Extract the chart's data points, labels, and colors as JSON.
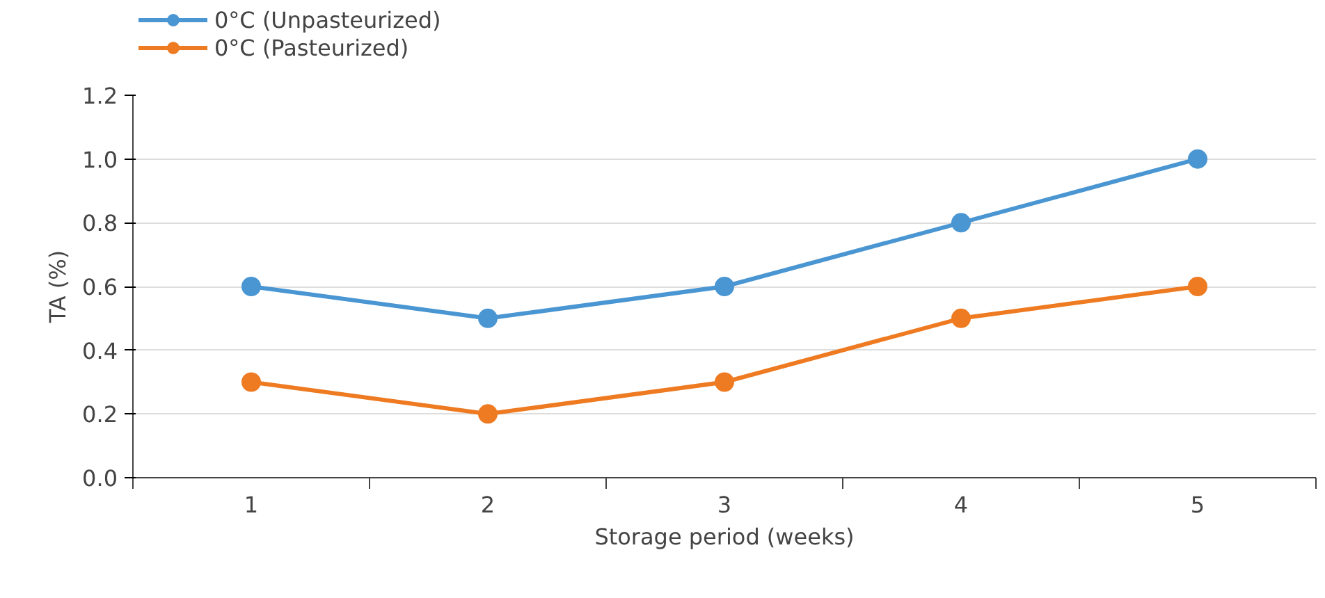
{
  "chart_data": {
    "type": "line",
    "xlabel": "Storage period (weeks)",
    "ylabel": "TA (%)",
    "categories": [
      "1",
      "2",
      "3",
      "4",
      "5"
    ],
    "series": [
      {
        "name": "0°C (Unpasteurized)",
        "color": "#4a96d2",
        "values": [
          0.6,
          0.5,
          0.6,
          0.8,
          1.0
        ]
      },
      {
        "name": "0°C (Pasteurized)",
        "color": "#ee7b22",
        "values": [
          0.3,
          0.2,
          0.3,
          0.5,
          0.6
        ]
      }
    ],
    "ylim": [
      0,
      1.2
    ],
    "yticks": [
      {
        "value": 0,
        "label": "0.0"
      },
      {
        "value": 0.2,
        "label": "0.2"
      },
      {
        "value": 0.4,
        "label": "0.4"
      },
      {
        "value": 0.6,
        "label": "0.6"
      },
      {
        "value": 0.8,
        "label": "0.8"
      },
      {
        "value": 1.0,
        "label": "1.0"
      },
      {
        "value": 1.2,
        "label": "1.2"
      }
    ],
    "grid": "y",
    "legend": "top left",
    "marker": "circle",
    "line_style": "solid"
  }
}
